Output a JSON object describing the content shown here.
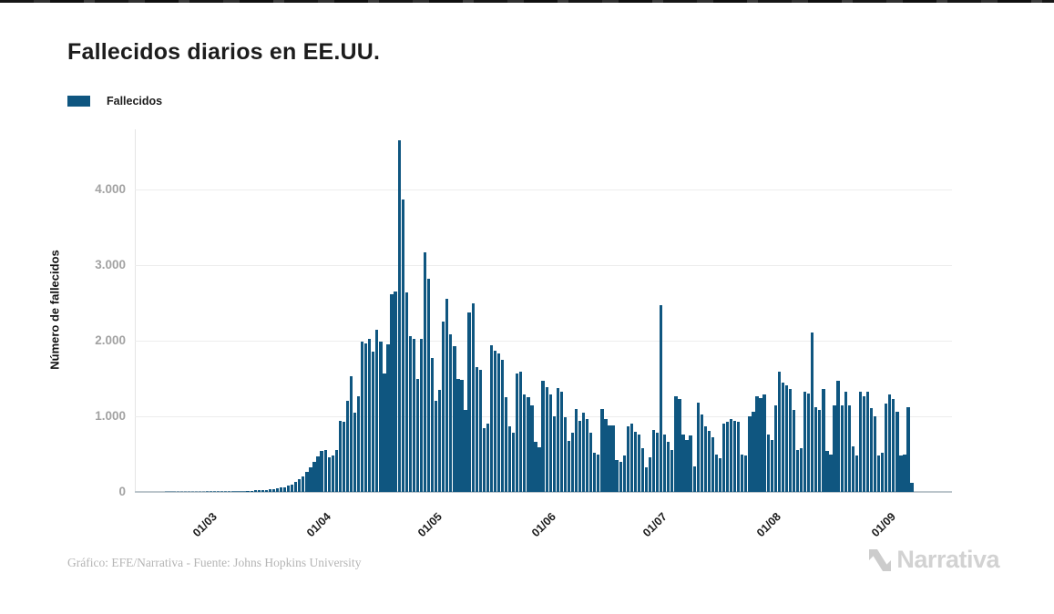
{
  "page": {
    "title": "Fallecidos diarios en EE.UU.",
    "footnote": "Gráfico: EFE/Narrativa - Fuente: Johns Hopkins University",
    "logo_text": "Narrativa"
  },
  "legend": {
    "label": "Fallecidos"
  },
  "colors": {
    "bar": "#0f5680",
    "grid": "#ededed",
    "y_tick_text": "#a2a2a2",
    "x_tick_text": "#1b1b1b",
    "footnote_text": "#b5b5b5",
    "logo_gray": "#d2d2d2"
  },
  "chart_data": {
    "type": "bar",
    "title": "Fallecidos diarios en EE.UU.",
    "xlabel": "",
    "ylabel": "Número de fallecidos",
    "legend_position": "top-left",
    "grid": true,
    "ylim": [
      0,
      4800
    ],
    "y_ticks": [
      {
        "label": "0",
        "value": 0
      },
      {
        "label": "1.000",
        "value": 1000
      },
      {
        "label": "2.000",
        "value": 2000
      },
      {
        "label": "3.000",
        "value": 3000
      },
      {
        "label": "4.000",
        "value": 4000
      }
    ],
    "x_ticks": [
      {
        "label": "01/03",
        "index": 21
      },
      {
        "label": "01/04",
        "index": 52
      },
      {
        "label": "01/05",
        "index": 82
      },
      {
        "label": "01/06",
        "index": 113
      },
      {
        "label": "01/07",
        "index": 143
      },
      {
        "label": "01/08",
        "index": 174
      },
      {
        "label": "01/09",
        "index": 205
      }
    ],
    "series": [
      {
        "name": "Fallecidos",
        "values": [
          0,
          0,
          0,
          0,
          0,
          0,
          0,
          1,
          1,
          1,
          1,
          2,
          2,
          2,
          2,
          3,
          3,
          3,
          4,
          4,
          5,
          5,
          6,
          6,
          7,
          8,
          10,
          12,
          14,
          16,
          18,
          22,
          25,
          28,
          30,
          35,
          40,
          48,
          55,
          65,
          80,
          100,
          130,
          165,
          210,
          260,
          330,
          400,
          470,
          540,
          560,
          460,
          480,
          560,
          945,
          925,
          1205,
          1525,
          1045,
          1265,
          1990,
          1970,
          2030,
          1850,
          2150,
          1990,
          1565,
          1950,
          2610,
          2650,
          4650,
          3870,
          2640,
          2060,
          2020,
          1490,
          2020,
          3170,
          2820,
          1770,
          1200,
          1350,
          2250,
          2550,
          2090,
          1930,
          1490,
          1480,
          1080,
          2370,
          2490,
          1650,
          1610,
          840,
          900,
          1940,
          1870,
          1830,
          1750,
          1250,
          865,
          785,
          1570,
          1590,
          1290,
          1250,
          1150,
          665,
          585,
          1470,
          1390,
          1290,
          1000,
          1370,
          1330,
          985,
          680,
          780,
          1100,
          945,
          1045,
          965,
          785,
          520,
          500,
          1100,
          965,
          885,
          885,
          420,
          400,
          480,
          865,
          905,
          800,
          760,
          580,
          320,
          460,
          820,
          780,
          2470,
          760,
          660,
          560,
          1270,
          1230,
          765,
          685,
          745,
          340,
          1185,
          1025,
          865,
          805,
          725,
          500,
          440,
          905,
          925,
          965,
          945,
          925,
          500,
          480,
          1005,
          1065,
          1265,
          1245,
          1285,
          765,
          685,
          1145,
          1590,
          1445,
          1405,
          1365,
          1085,
          560,
          580,
          1325,
          1305,
          2110,
          1125,
          1085,
          1365,
          540,
          500,
          1145,
          1465,
          1145,
          1325,
          1145,
          600,
          480,
          1325,
          1265,
          1325,
          1105,
          1005,
          480,
          520,
          1165,
          1285,
          1225,
          1065,
          480,
          500,
          1125,
          120
        ]
      }
    ]
  }
}
